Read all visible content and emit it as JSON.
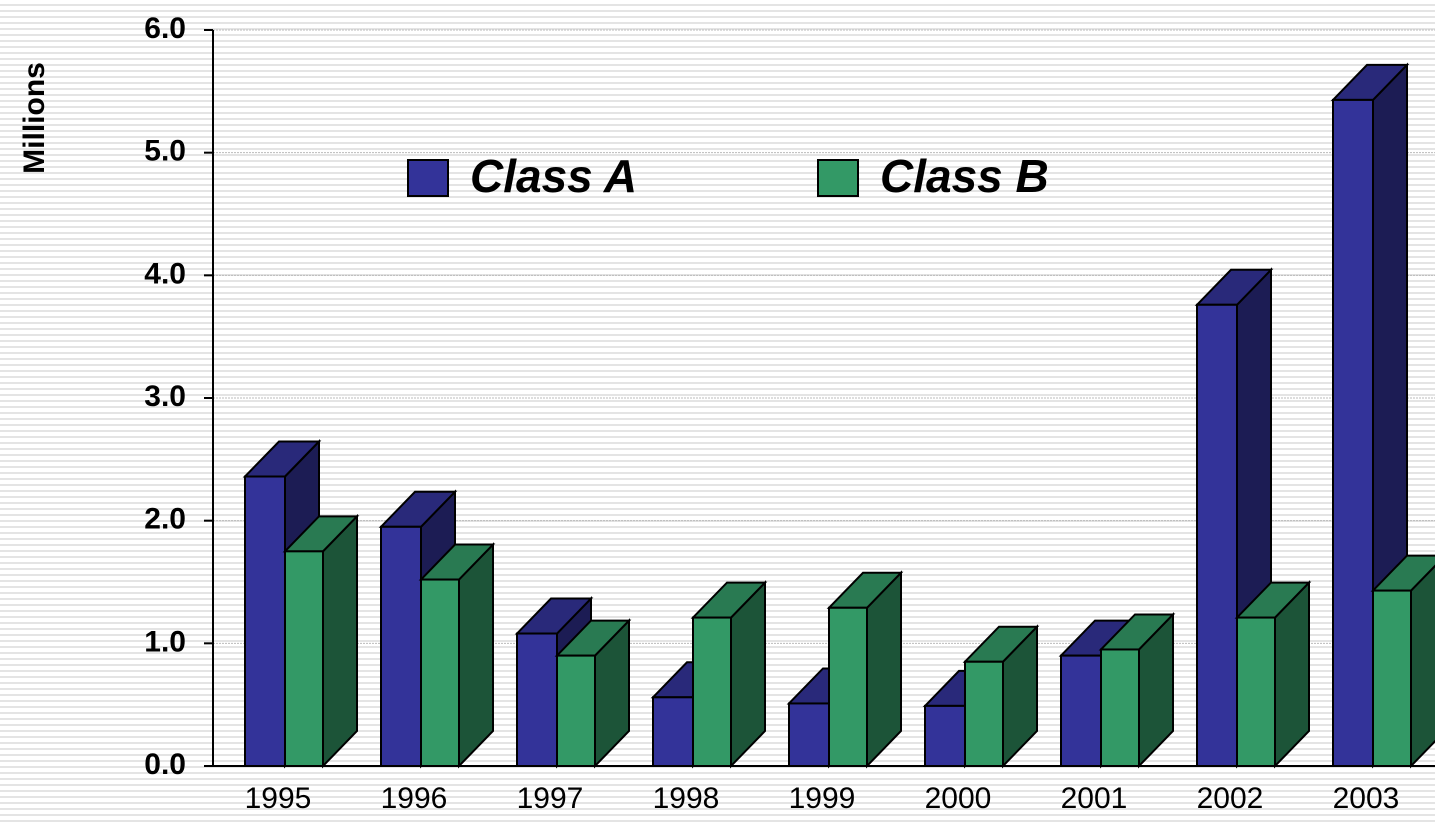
{
  "chart_data": {
    "type": "bar3d",
    "y_label": "Millions",
    "categories": [
      "1995",
      "1996",
      "1997",
      "1998",
      "1999",
      "2000",
      "2001",
      "2002",
      "2003"
    ],
    "series": [
      {
        "name": "Class A",
        "color": "#333399",
        "values": [
          2.36,
          1.95,
          1.08,
          0.56,
          0.51,
          0.49,
          0.9,
          3.76,
          5.43
        ]
      },
      {
        "name": "Class B",
        "color": "#339966",
        "values": [
          1.75,
          1.52,
          0.9,
          1.21,
          1.29,
          0.85,
          0.95,
          1.21,
          1.43
        ]
      }
    ],
    "ylim": [
      0,
      6
    ],
    "yticks": [
      {
        "value": 0,
        "label": "0.0"
      },
      {
        "value": 1,
        "label": "1.0"
      },
      {
        "value": 2,
        "label": "2.0"
      },
      {
        "value": 3,
        "label": "3.0"
      },
      {
        "value": 4,
        "label": "4.0"
      },
      {
        "value": 5,
        "label": "5.0"
      },
      {
        "value": 6,
        "label": "6.0"
      }
    ],
    "grid": true,
    "legend": "top"
  }
}
